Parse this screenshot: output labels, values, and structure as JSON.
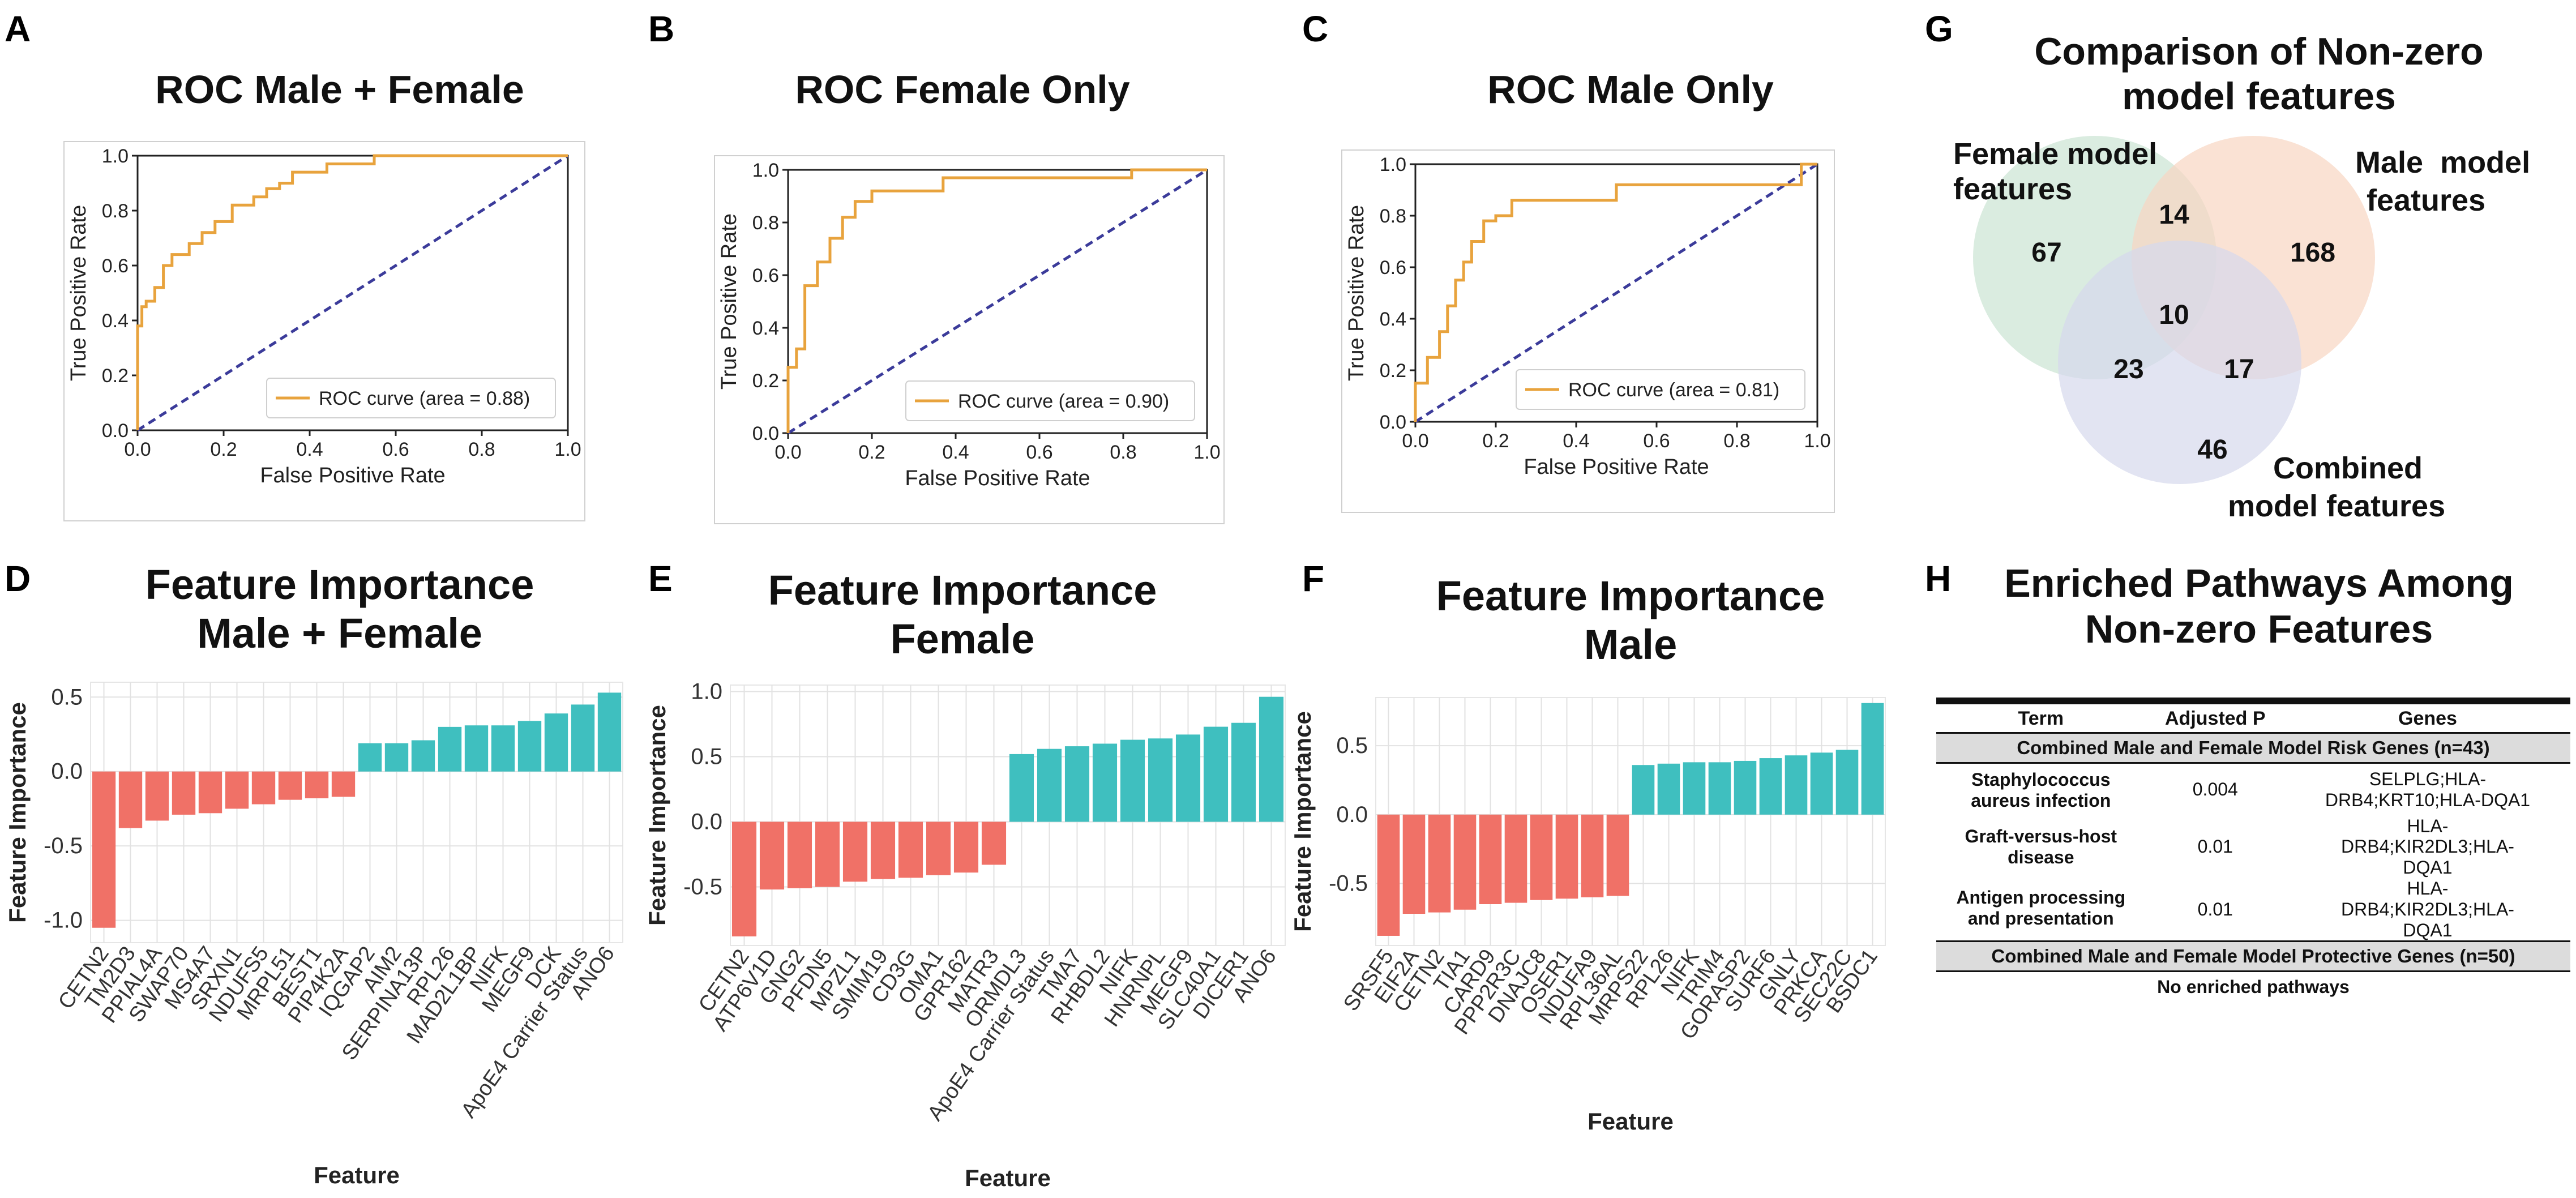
{
  "panels": {
    "A": {
      "label": "A",
      "title": "ROC Male + Female"
    },
    "B": {
      "label": "B",
      "title": "ROC Female Only"
    },
    "C": {
      "label": "C",
      "title": "ROC Male Only"
    },
    "D": {
      "label": "D",
      "title1": "Feature Importance",
      "title2": "Male + Female"
    },
    "E": {
      "label": "E",
      "title1": "Feature Importance",
      "title2": "Female"
    },
    "F": {
      "label": "F",
      "title1": "Feature Importance",
      "title2": "Male"
    },
    "G": {
      "label": "G",
      "title1": "Comparison of Non-zero",
      "title2": "model features"
    },
    "H": {
      "label": "H",
      "title1": "Enriched Pathways Among",
      "title2": "Non-zero Features"
    }
  },
  "colors": {
    "roc_curve": "#e8a33d",
    "diagonal": "#3b3b9a",
    "negative_bar": "#f07167",
    "positive_bar": "#3fbfbf",
    "grid": "#e2e2e2",
    "venn_female": "#cde6d6",
    "venn_male": "#f8d6c2",
    "venn_combined": "#d5d9ec"
  },
  "chart_data": [
    {
      "id": "A",
      "type": "line",
      "title": "ROC Male + Female",
      "xlabel": "False Positive Rate",
      "ylabel": "True Positive Rate",
      "xlim": [
        0,
        1
      ],
      "ylim": [
        0,
        1
      ],
      "ticks": [
        "0.0",
        "0.2",
        "0.4",
        "0.6",
        "0.8",
        "1.0"
      ],
      "legend": "ROC curve (area = 0.88)",
      "auc": 0.88,
      "series": [
        {
          "name": "ROC curve",
          "x": [
            0,
            0,
            0.01,
            0.01,
            0.02,
            0.02,
            0.04,
            0.04,
            0.06,
            0.06,
            0.08,
            0.08,
            0.12,
            0.12,
            0.15,
            0.15,
            0.18,
            0.18,
            0.22,
            0.22,
            0.27,
            0.27,
            0.3,
            0.3,
            0.33,
            0.33,
            0.36,
            0.36,
            0.44,
            0.44,
            0.55,
            0.55,
            1.0
          ],
          "y": [
            0,
            0.38,
            0.38,
            0.45,
            0.45,
            0.47,
            0.47,
            0.52,
            0.52,
            0.6,
            0.6,
            0.64,
            0.64,
            0.68,
            0.68,
            0.72,
            0.72,
            0.76,
            0.76,
            0.82,
            0.82,
            0.85,
            0.85,
            0.88,
            0.88,
            0.9,
            0.9,
            0.94,
            0.94,
            0.97,
            0.97,
            1.0,
            1.0
          ]
        }
      ]
    },
    {
      "id": "B",
      "type": "line",
      "title": "ROC Female Only",
      "xlabel": "False Positive Rate",
      "ylabel": "True Positive Rate",
      "xlim": [
        0,
        1
      ],
      "ylim": [
        0,
        1
      ],
      "ticks": [
        "0.0",
        "0.2",
        "0.4",
        "0.6",
        "0.8",
        "1.0"
      ],
      "legend": "ROC curve (area = 0.90)",
      "auc": 0.9,
      "series": [
        {
          "name": "ROC curve",
          "x": [
            0,
            0,
            0.02,
            0.02,
            0.04,
            0.04,
            0.07,
            0.07,
            0.1,
            0.1,
            0.13,
            0.13,
            0.16,
            0.16,
            0.2,
            0.2,
            0.37,
            0.37,
            0.82,
            0.82,
            1.0
          ],
          "y": [
            0,
            0.25,
            0.25,
            0.32,
            0.32,
            0.56,
            0.56,
            0.65,
            0.65,
            0.74,
            0.74,
            0.82,
            0.82,
            0.88,
            0.88,
            0.92,
            0.92,
            0.97,
            0.97,
            1.0,
            1.0
          ]
        }
      ]
    },
    {
      "id": "C",
      "type": "line",
      "title": "ROC Male Only",
      "xlabel": "False Positive Rate",
      "ylabel": "True Positive Rate",
      "xlim": [
        0,
        1
      ],
      "ylim": [
        0,
        1
      ],
      "ticks": [
        "0.0",
        "0.2",
        "0.4",
        "0.6",
        "0.8",
        "1.0"
      ],
      "legend": "ROC curve (area = 0.81)",
      "auc": 0.81,
      "series": [
        {
          "name": "ROC curve",
          "x": [
            0,
            0,
            0.03,
            0.03,
            0.06,
            0.06,
            0.08,
            0.08,
            0.1,
            0.1,
            0.12,
            0.12,
            0.14,
            0.14,
            0.17,
            0.17,
            0.2,
            0.2,
            0.24,
            0.24,
            0.5,
            0.5,
            0.96,
            0.96,
            1.0
          ],
          "y": [
            0,
            0.15,
            0.15,
            0.25,
            0.25,
            0.35,
            0.35,
            0.45,
            0.45,
            0.55,
            0.55,
            0.62,
            0.62,
            0.7,
            0.7,
            0.78,
            0.78,
            0.8,
            0.8,
            0.86,
            0.86,
            0.92,
            0.92,
            1.0,
            1.0
          ]
        }
      ]
    },
    {
      "id": "D",
      "type": "bar",
      "title": "Feature Importance Male + Female",
      "xlabel": "Feature",
      "ylabel": "Feature Importance",
      "ylim": [
        -1.15,
        0.6
      ],
      "yticks": [
        -1.0,
        -0.5,
        0.0,
        0.5
      ],
      "categories": [
        "CETN2",
        "TM2D3",
        "PPIAL4A",
        "SWAP70",
        "MS4A7",
        "SRXN1",
        "NDUFS5",
        "MRPL51",
        "BEST1",
        "PIP4K2A",
        "IQGAP2",
        "AIM2",
        "SERPINA13P",
        "RPL26",
        "MAD2L1BP",
        "NIFK",
        "MEGF9",
        "DCK",
        "ApoE4 Carrier Status",
        "ANO6"
      ],
      "values": [
        -1.05,
        -0.38,
        -0.33,
        -0.29,
        -0.28,
        -0.25,
        -0.22,
        -0.19,
        -0.18,
        -0.17,
        0.19,
        0.19,
        0.21,
        0.3,
        0.31,
        0.31,
        0.34,
        0.39,
        0.45,
        0.53
      ]
    },
    {
      "id": "E",
      "type": "bar",
      "title": "Feature Importance Female",
      "xlabel": "Feature",
      "ylabel": "Feature Importance",
      "ylim": [
        -0.95,
        1.05
      ],
      "yticks": [
        -0.5,
        0.0,
        0.5,
        1.0
      ],
      "categories": [
        "CETN2",
        "ATP6V1D",
        "GNG2",
        "PFDN5",
        "MPZL1",
        "SMIM19",
        "CD3G",
        "OMA1",
        "GPR162",
        "MATR3",
        "ORMDL3",
        "ApoE4 Carrier Status",
        "TMA7",
        "RHBDL2",
        "NIFK",
        "HNRNPL",
        "MEGF9",
        "SLC40A1",
        "DICER1",
        "ANO6"
      ],
      "values": [
        -0.88,
        -0.52,
        -0.51,
        -0.5,
        -0.46,
        -0.44,
        -0.43,
        -0.41,
        -0.39,
        -0.33,
        0.52,
        0.56,
        0.58,
        0.6,
        0.63,
        0.64,
        0.67,
        0.73,
        0.76,
        0.96
      ]
    },
    {
      "id": "F",
      "type": "bar",
      "title": "Feature Importance Male",
      "xlabel": "Feature",
      "ylabel": "Feature Importance",
      "ylim": [
        -0.95,
        0.85
      ],
      "yticks": [
        -0.5,
        0.0,
        0.5
      ],
      "categories": [
        "SRSF5",
        "EIF2A",
        "CETN2",
        "TIA1",
        "CARD9",
        "PPP2R3C",
        "DNAJC8",
        "OSER1",
        "NDUFA9",
        "RPL36AL",
        "MRPS22",
        "RPL26",
        "NIFK",
        "TRIM4",
        "GORASP2",
        "SURF6",
        "GNLY",
        "PRKCA",
        "SEC22C",
        "BSDC1"
      ],
      "values": [
        -0.88,
        -0.72,
        -0.71,
        -0.69,
        -0.65,
        -0.64,
        -0.62,
        -0.61,
        -0.6,
        -0.59,
        0.36,
        0.37,
        0.38,
        0.38,
        0.39,
        0.41,
        0.43,
        0.45,
        0.47,
        0.81
      ]
    }
  ],
  "venn": {
    "female_label_1": "Female model",
    "female_label_2": "features",
    "male_label_1": "Male  model",
    "male_label_2": "features",
    "combined_label_1": "Combined",
    "combined_label_2": "model features",
    "female_only": "67",
    "male_only": "168",
    "combined_only": "46",
    "female_male": "14",
    "female_combined": "23",
    "male_combined": "17",
    "all_three": "10"
  },
  "table": {
    "headers": [
      "Term",
      "Adjusted P",
      "Genes"
    ],
    "section1": "Combined Male and Female Model Risk Genes (n=43)",
    "rows": [
      {
        "term_1": "Staphylococcus",
        "term_2": "aureus infection",
        "p": "0.004",
        "genes_1": "SELPLG;HLA-",
        "genes_2": "DRB4;KRT10;HLA-DQA1"
      },
      {
        "term_1": "Graft-versus-host",
        "term_2": "disease",
        "p": "0.01",
        "genes_1": "HLA-",
        "genes_2": "DRB4;KIR2DL3;HLA-",
        "genes_3": "DQA1"
      },
      {
        "term_1": "Antigen processing",
        "term_2": "and presentation",
        "p": "0.01",
        "genes_1": "HLA-",
        "genes_2": "DRB4;KIR2DL3;HLA-",
        "genes_3": "DQA1"
      }
    ],
    "section2": "Combined Male and Female Model Protective Genes (n=50)",
    "no_pathways": "No enriched pathways"
  }
}
